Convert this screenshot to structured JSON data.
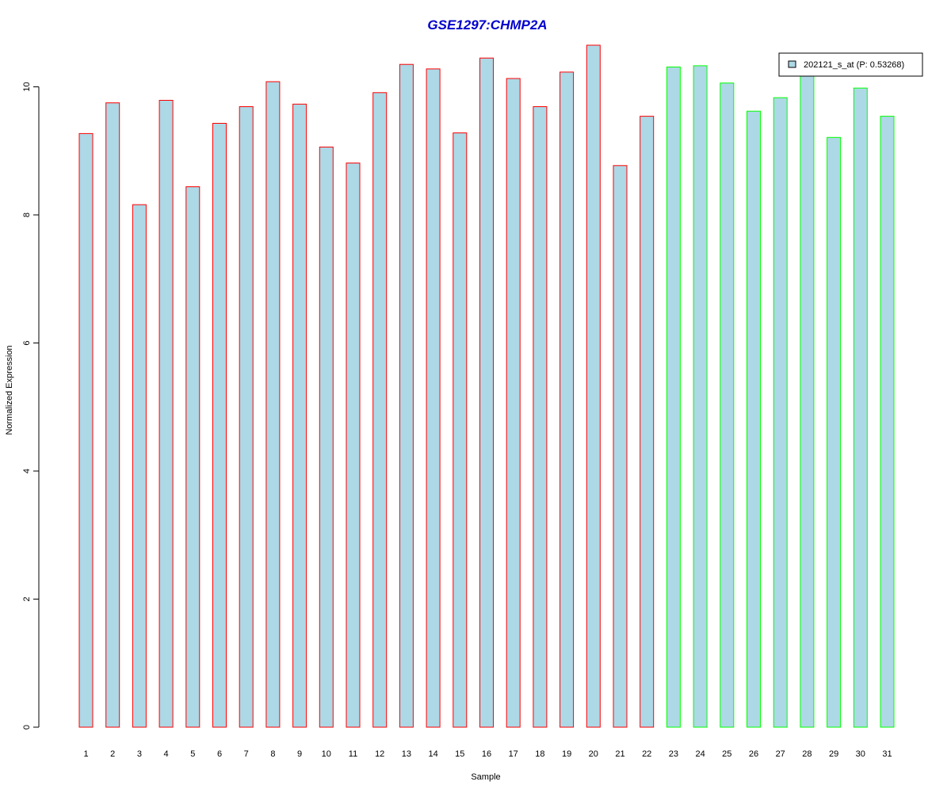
{
  "chart_data": {
    "type": "bar",
    "title": "GSE1297:CHMP2A",
    "xlabel": "Sample",
    "ylabel": "Normalized Expression",
    "ylim": [
      0,
      10.6
    ],
    "yticks": [
      0,
      2,
      4,
      6,
      8,
      10
    ],
    "categories": [
      "1",
      "2",
      "3",
      "4",
      "5",
      "6",
      "7",
      "8",
      "9",
      "10",
      "11",
      "12",
      "13",
      "14",
      "15",
      "16",
      "17",
      "18",
      "19",
      "20",
      "21",
      "22",
      "23",
      "24",
      "25",
      "26",
      "27",
      "28",
      "29",
      "30",
      "31"
    ],
    "values": [
      9.27,
      9.75,
      8.16,
      9.79,
      8.44,
      9.43,
      9.69,
      10.08,
      9.73,
      9.06,
      8.81,
      9.91,
      10.35,
      10.28,
      9.28,
      10.45,
      10.13,
      9.69,
      10.23,
      10.65,
      8.77,
      9.54,
      10.31,
      10.33,
      10.06,
      9.62,
      9.83,
      10.22,
      9.21,
      9.98,
      9.54
    ],
    "groups": [
      "red",
      "red",
      "red",
      "red",
      "red",
      "red",
      "red",
      "red",
      "red",
      "red",
      "red",
      "red",
      "red",
      "red",
      "red",
      "red",
      "red",
      "red",
      "red",
      "red",
      "red",
      "red",
      "green",
      "green",
      "green",
      "green",
      "green",
      "green",
      "green",
      "green",
      "green"
    ],
    "grid": false,
    "legend": {
      "position": "top-right",
      "label": "202121_s_at (P: 0.53268)"
    }
  },
  "colors": {
    "bar_fill": "#ADD8E6",
    "red_border": "#FF0000",
    "green_border": "#00FF00",
    "title": "#0000CC",
    "axis": "#000000"
  }
}
